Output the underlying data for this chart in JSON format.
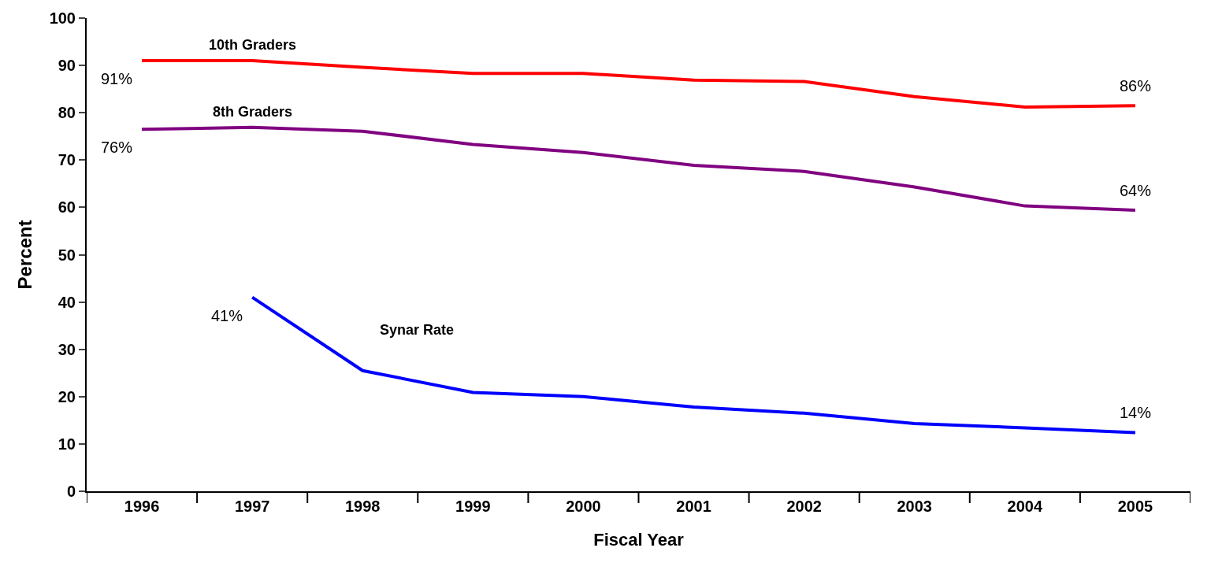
{
  "chart_data": {
    "type": "line",
    "xlabel": "Fiscal Year",
    "ylabel": "Percent",
    "categories": [
      "1996",
      "1997",
      "1998",
      "1999",
      "2000",
      "2001",
      "2002",
      "2003",
      "2004",
      "2005"
    ],
    "series": [
      {
        "name": "10th Graders",
        "color": "#ff0000",
        "values": [
          91,
          91,
          89.6,
          88.3,
          88.3,
          86.9,
          86.6,
          83.4,
          81.2,
          81.5
        ]
      },
      {
        "name": "8th Graders",
        "color": "#800080",
        "values": [
          76.5,
          76.9,
          76.1,
          73.3,
          71.6,
          68.9,
          67.6,
          64.3,
          60.3,
          59.4
        ]
      },
      {
        "name": "Synar Rate",
        "color": "#0000ff",
        "values": [
          null,
          41,
          25.5,
          20.9,
          20.0,
          17.8,
          16.5,
          14.3,
          13.4,
          12.4
        ]
      }
    ],
    "annotations": [
      {
        "text": "91%",
        "x": "1996",
        "y": 91
      },
      {
        "text": "86%",
        "x": "2005",
        "y": 81.5
      },
      {
        "text": "76%",
        "x": "1996",
        "y": 76.5
      },
      {
        "text": "64%",
        "x": "2005",
        "y": 59.4
      },
      {
        "text": "41%",
        "x": "1997",
        "y": 41
      },
      {
        "text": "14%",
        "x": "2005",
        "y": 12.4
      }
    ],
    "ylim": [
      0,
      100
    ],
    "yticks": [
      0,
      10,
      20,
      30,
      40,
      50,
      60,
      70,
      80,
      90,
      100
    ],
    "legend": false,
    "marker": "none",
    "line_style": "solid"
  }
}
